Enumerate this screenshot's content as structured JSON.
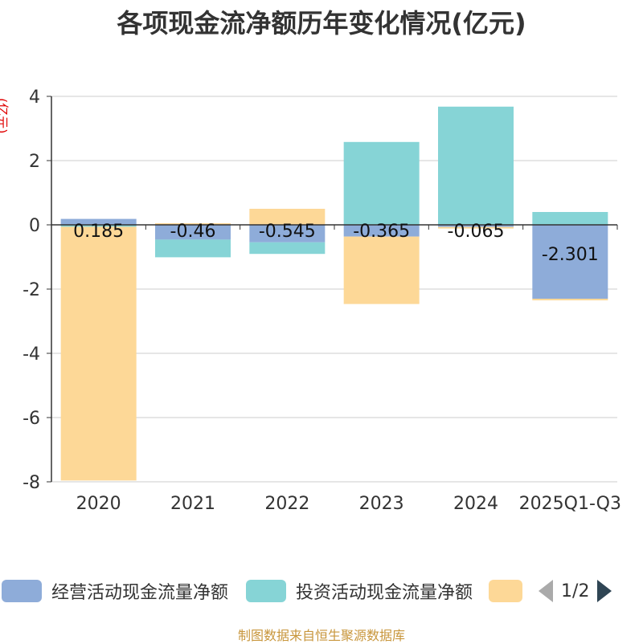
{
  "chart_data": {
    "type": "bar",
    "stacked": true,
    "title": "各项现金流净额历年变化情况(亿元)",
    "ylabel": "(亿元)",
    "ylim": [
      -8,
      4
    ],
    "yticks": [
      4,
      2,
      0,
      -2,
      -4,
      -6,
      -8
    ],
    "categories": [
      "2020",
      "2021",
      "2022",
      "2023",
      "2024",
      "2025Q1-Q3"
    ],
    "series": [
      {
        "name": "经营活动现金流量净额",
        "color": "#8eacd9",
        "values": [
          0.185,
          -0.46,
          -0.545,
          -0.365,
          -0.065,
          -2.301
        ]
      },
      {
        "name": "投资活动现金流量净额",
        "color": "#86d4d6",
        "values": [
          -0.06,
          -0.55,
          -0.36,
          2.58,
          3.68,
          0.4
        ]
      },
      {
        "name": "",
        "color": "#fdd897",
        "values": [
          -7.9,
          0.05,
          0.5,
          -2.1,
          -0.05,
          -0.05
        ]
      }
    ],
    "data_labels": [
      "0.185",
      "-0.46",
      "-0.545",
      "-0.365",
      "-0.065",
      "-2.301"
    ],
    "grid": true
  },
  "legend": {
    "items": [
      {
        "label": "经营活动现金流量净额",
        "color": "#8eacd9"
      },
      {
        "label": "投资活动现金流量净额",
        "color": "#86d4d6"
      },
      {
        "label": "",
        "color": "#fdd897"
      }
    ],
    "page": "1/2"
  },
  "source": "制图数据来自恒生聚源数据库"
}
